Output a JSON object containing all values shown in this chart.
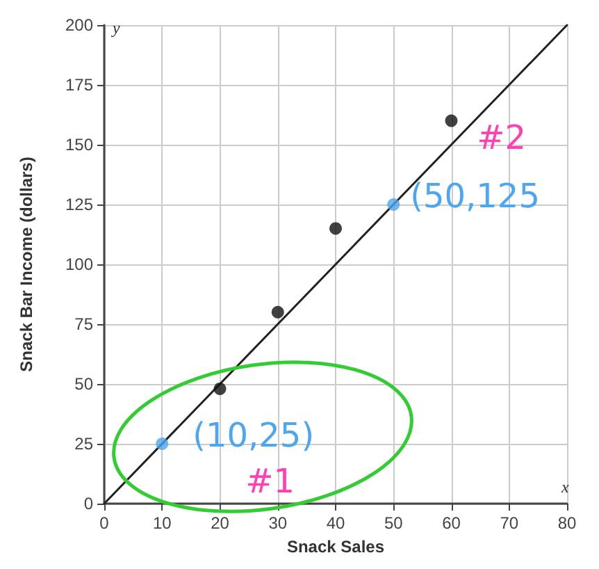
{
  "chart_data": {
    "type": "scatter",
    "xlabel": "Snack Sales",
    "ylabel": "Snack Bar Income (dollars)",
    "series": [
      {
        "type": "line",
        "color": "#222222",
        "x": [
          0,
          80
        ],
        "values": [
          0,
          200
        ],
        "marker": "none"
      },
      {
        "color": "#111111",
        "x": [
          20,
          30,
          40,
          60
        ],
        "values": [
          48,
          80,
          115,
          160
        ]
      },
      {
        "color": "#4da6f0",
        "x": [
          10,
          50
        ],
        "values": [
          25,
          125
        ]
      }
    ],
    "annotations": [
      "x",
      "y",
      "(10,25)",
      "#1",
      "(50,125",
      "#2"
    ],
    "xlim": [
      0,
      80
    ],
    "ylim": [
      0,
      200
    ],
    "xticks": [
      0,
      10,
      20,
      30,
      40,
      50,
      60,
      70,
      80
    ],
    "yticks": [
      0,
      25,
      50,
      75,
      100,
      125,
      150,
      175,
      200
    ],
    "grid": true,
    "marker": "circle"
  }
}
